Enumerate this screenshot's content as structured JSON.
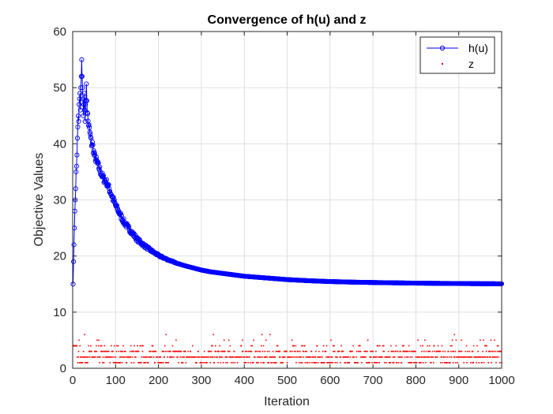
{
  "chart_data": {
    "type": "line",
    "title": "Convergence of h(u) and z",
    "xlabel": "Iteration",
    "ylabel": "Objective Values",
    "xlim": [
      0,
      1000
    ],
    "ylim": [
      0,
      60
    ],
    "x_ticks": [
      "0",
      "100",
      "200",
      "300",
      "400",
      "500",
      "600",
      "700",
      "800",
      "900",
      "1000"
    ],
    "y_ticks": [
      "0",
      "10",
      "20",
      "30",
      "40",
      "50",
      "60"
    ],
    "grid": true,
    "legend_position": "top-right",
    "series": [
      {
        "name": "h(u)",
        "style": "line-circle-markers",
        "color": "#0000ff",
        "iterations": "1-1000",
        "values": [
          [
            1,
            15
          ],
          [
            2,
            19
          ],
          [
            3,
            22
          ],
          [
            4,
            25
          ],
          [
            5,
            28
          ],
          [
            6,
            30
          ],
          [
            7,
            32
          ],
          [
            8,
            35
          ],
          [
            9,
            36
          ],
          [
            10,
            38
          ],
          [
            11,
            41
          ],
          [
            12,
            43
          ],
          [
            13,
            45
          ],
          [
            14,
            44
          ],
          [
            15,
            47
          ],
          [
            16,
            48
          ],
          [
            17,
            49
          ],
          [
            18,
            46
          ],
          [
            19,
            50
          ],
          [
            20,
            52
          ],
          [
            21,
            55
          ],
          [
            22,
            52
          ],
          [
            23,
            50
          ],
          [
            24,
            48
          ],
          [
            25,
            45
          ],
          [
            26,
            47
          ],
          [
            27,
            49
          ],
          [
            28,
            46
          ],
          [
            29,
            44
          ],
          [
            30,
            47
          ],
          [
            32,
            50
          ],
          [
            34,
            46
          ],
          [
            36,
            44
          ],
          [
            38,
            43
          ],
          [
            40,
            42
          ],
          [
            42,
            41
          ],
          [
            44,
            40
          ],
          [
            46,
            40
          ],
          [
            48,
            39
          ],
          [
            50,
            38
          ],
          [
            60,
            36
          ],
          [
            70,
            34
          ],
          [
            80,
            33
          ],
          [
            90,
            31
          ],
          [
            100,
            29
          ],
          [
            110,
            27.5
          ],
          [
            120,
            26
          ],
          [
            130,
            25
          ],
          [
            140,
            24
          ],
          [
            150,
            23
          ],
          [
            160,
            22.3
          ],
          [
            170,
            21.7
          ],
          [
            180,
            21.1
          ],
          [
            190,
            20.6
          ],
          [
            200,
            20.1
          ],
          [
            220,
            19.4
          ],
          [
            240,
            18.8
          ],
          [
            260,
            18.3
          ],
          [
            280,
            17.9
          ],
          [
            300,
            17.5
          ],
          [
            320,
            17.2
          ],
          [
            340,
            17
          ],
          [
            360,
            16.8
          ],
          [
            380,
            16.6
          ],
          [
            400,
            16.4
          ],
          [
            450,
            16.1
          ],
          [
            500,
            15.8
          ],
          [
            550,
            15.6
          ],
          [
            600,
            15.45
          ],
          [
            650,
            15.35
          ],
          [
            700,
            15.28
          ],
          [
            750,
            15.22
          ],
          [
            800,
            15.17
          ],
          [
            850,
            15.13
          ],
          [
            900,
            15.1
          ],
          [
            950,
            15.07
          ],
          [
            1000,
            15.05
          ]
        ]
      },
      {
        "name": "z",
        "style": "dots",
        "color": "#ff0000",
        "iterations": "1-1000",
        "levels": [
          1,
          2,
          3,
          4,
          5,
          6
        ],
        "level_weights": [
          0.22,
          0.42,
          0.24,
          0.09,
          0.02,
          0.01
        ]
      }
    ]
  }
}
